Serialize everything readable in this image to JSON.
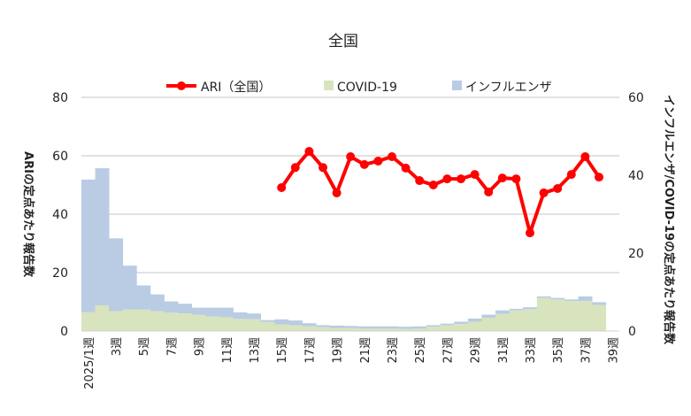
{
  "chart_data": {
    "type": "bar",
    "title": "全国",
    "ylabel_left": "ARIの定点あたり報告数",
    "ylabel_right": "インフルエンザ/COVID-19の定点あたり報告数",
    "ylim_left": [
      0,
      80
    ],
    "ylim_right": [
      0,
      60
    ],
    "yticks_left": [
      "0",
      "20",
      "40",
      "60",
      "80"
    ],
    "yticks_right": [
      "0",
      "20",
      "40",
      "60"
    ],
    "grid": true,
    "legend": {
      "placement": "top",
      "entries": [
        "ARI（全国）",
        "COVID-19",
        "インフルエンザ"
      ]
    },
    "xtick_labels": [
      "2025/1週",
      "3週",
      "5週",
      "7週",
      "9週",
      "11週",
      "13週",
      "15週",
      "17週",
      "19週",
      "21週",
      "23週",
      "25週",
      "27週",
      "29週",
      "31週",
      "33週",
      "35週",
      "37週",
      "39週"
    ],
    "weeks": [
      1,
      2,
      3,
      4,
      5,
      6,
      7,
      8,
      9,
      10,
      11,
      12,
      13,
      14,
      15,
      16,
      17,
      18,
      19,
      20,
      21,
      22,
      23,
      24,
      25,
      26,
      27,
      28,
      29,
      30,
      31,
      32,
      33,
      34,
      35,
      36,
      37,
      38
    ],
    "series": [
      {
        "name": "COVID-19",
        "axis": "right",
        "kind": "stacked-step-area",
        "color": "#d7e4bd",
        "values": [
          4.8,
          6.6,
          5.1,
          5.5,
          5.5,
          5.1,
          4.7,
          4.5,
          4.2,
          3.7,
          3.5,
          3.1,
          3.0,
          2.3,
          1.7,
          1.5,
          1.2,
          1.0,
          0.8,
          0.8,
          0.6,
          0.6,
          0.6,
          0.5,
          0.6,
          1.1,
          1.5,
          1.8,
          2.4,
          3.4,
          4.4,
          5.3,
          5.6,
          8.5,
          8.1,
          7.7,
          7.7,
          6.7
        ]
      },
      {
        "name": "インフルエンザ",
        "axis": "right",
        "kind": "stacked-step-area",
        "color": "#b9cce4",
        "values": [
          34.1,
          35.2,
          18.7,
          11.3,
          6.2,
          4.3,
          2.9,
          2.5,
          1.8,
          2.3,
          2.5,
          1.7,
          1.5,
          0.5,
          1.3,
          1.2,
          0.8,
          0.5,
          0.6,
          0.5,
          0.6,
          0.6,
          0.6,
          0.6,
          0.6,
          0.4,
          0.4,
          0.6,
          0.8,
          0.8,
          0.9,
          0.4,
          0.5,
          0.4,
          0.4,
          0.4,
          1.2,
          0.7
        ]
      },
      {
        "name": "ARI（全国）",
        "axis": "left",
        "kind": "line",
        "color": "#ff0000",
        "start_week": 15,
        "values": [
          49.1,
          56.0,
          61.5,
          56.0,
          47.3,
          59.7,
          57.0,
          58.2,
          59.7,
          55.8,
          51.5,
          50.0,
          52.1,
          52.1,
          53.6,
          47.6,
          52.4,
          52.1,
          33.6,
          47.3,
          48.8,
          53.6,
          59.7,
          52.7
        ]
      }
    ]
  }
}
